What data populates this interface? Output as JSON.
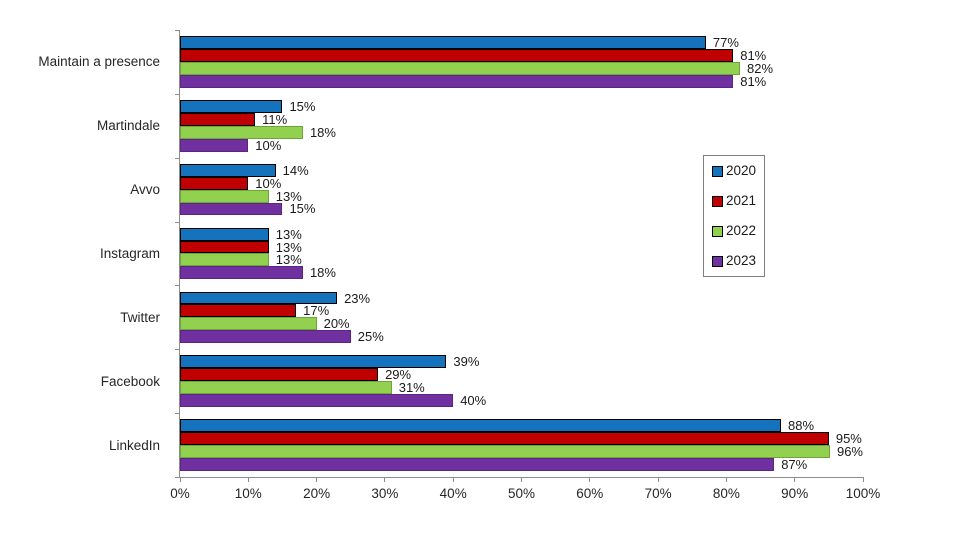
{
  "chart_data": {
    "type": "bar",
    "orientation": "horizontal",
    "title": "",
    "categories": [
      "Maintain a presence",
      "Martindale",
      "Avvo",
      "Instagram",
      "Twitter",
      "Facebook",
      "LinkedIn"
    ],
    "series": [
      {
        "name": "2020",
        "color": "#1572BC",
        "outline": "#000000",
        "outline_width": 1.7,
        "values": [
          77,
          15,
          14,
          13,
          23,
          39,
          88
        ]
      },
      {
        "name": "2021",
        "color": "#C00000",
        "outline": "#000000",
        "outline_width": 1.7,
        "values": [
          81,
          11,
          10,
          13,
          17,
          29,
          95
        ]
      },
      {
        "name": "2022",
        "color": "#92D050",
        "outline": "#6FA43A",
        "outline_width": 1,
        "values": [
          82,
          18,
          13,
          13,
          20,
          31,
          96
        ]
      },
      {
        "name": "2023",
        "color": "#7030A0",
        "outline": "#5B2584",
        "outline_width": 1,
        "values": [
          81,
          10,
          15,
          18,
          25,
          40,
          87
        ]
      }
    ],
    "value_suffix": "%",
    "xlim": [
      0,
      100
    ],
    "x_ticks": [
      "0%",
      "10%",
      "20%",
      "30%",
      "40%",
      "50%",
      "60%",
      "70%",
      "80%",
      "90%",
      "100%"
    ],
    "xlabel": "",
    "ylabel": "",
    "grid": false,
    "legend_position": "middle-right",
    "legend_entries": [
      "2020",
      "2021",
      "2022",
      "2023"
    ],
    "background_color": "#FFFFFF",
    "axis_color": "#8C8C8C",
    "text_color": "#262626"
  }
}
